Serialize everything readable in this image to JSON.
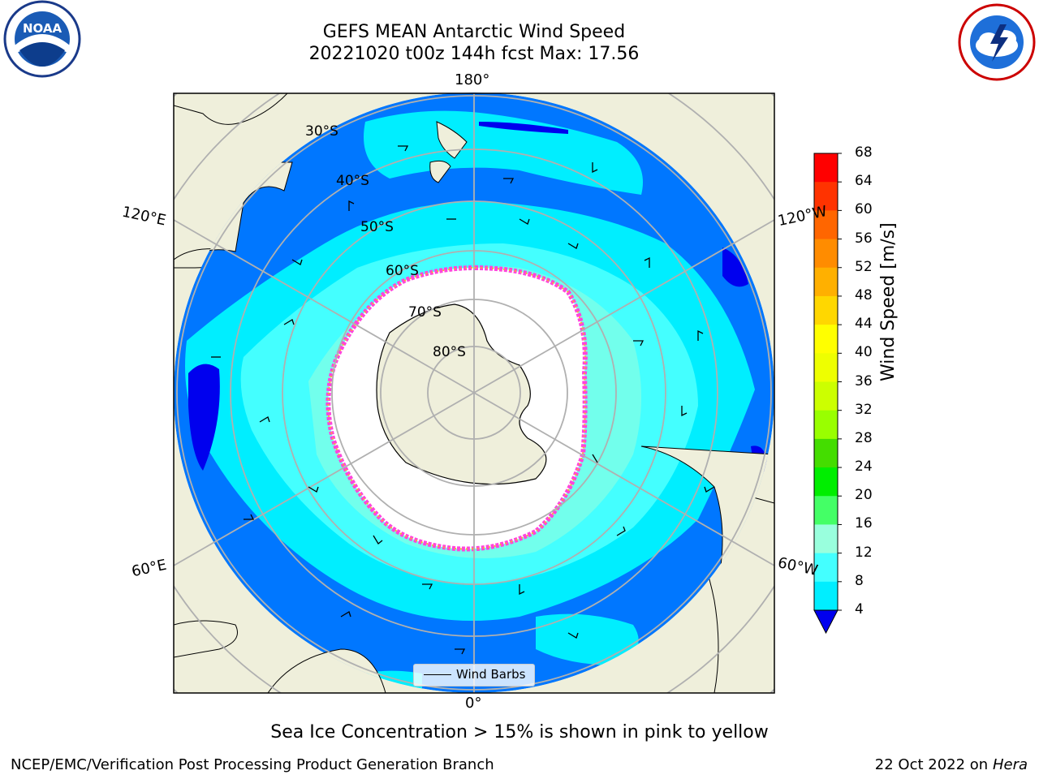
{
  "title": {
    "line1": "GEFS MEAN Antarctic Wind Speed",
    "line2": "20221020 t00z 144h fcst   Max: 17.56"
  },
  "logos": {
    "left": "noaa-logo",
    "left_text": "NOAA",
    "right": "nws-logo"
  },
  "map": {
    "projection": "south-polar-stereographic",
    "longitude_labels": {
      "top": "180°",
      "bottom": "0°",
      "left_upper": "120°E",
      "left_lower": "60°E",
      "right_upper": "120°W",
      "right_lower": "60°W"
    },
    "latitude_labels": [
      "30°S",
      "40°S",
      "50°S",
      "60°S",
      "70°S",
      "80°S"
    ],
    "legend": {
      "label": "Wind Barbs"
    },
    "land_color": "#efefdb",
    "ice_colors": [
      "#ff44dd",
      "#ffaa33"
    ]
  },
  "colorbar": {
    "label": "Wind Speed [m/s]",
    "ticks": [
      "68",
      "64",
      "60",
      "56",
      "52",
      "48",
      "44",
      "40",
      "36",
      "32",
      "28",
      "24",
      "20",
      "16",
      "12",
      "8",
      "4"
    ],
    "colors": [
      "#ff0000",
      "#ff3300",
      "#ff6600",
      "#ff8c00",
      "#ffb000",
      "#ffd700",
      "#ffff00",
      "#eeff00",
      "#ccff00",
      "#99ff00",
      "#44dd00",
      "#00ee00",
      "#44ff66",
      "#99ffdd",
      "#44ffff",
      "#00eeff",
      "#0077ff"
    ],
    "under_color": "#0000ee"
  },
  "caption": "Sea Ice Concentration > 15% is shown in pink to yellow",
  "footer": {
    "left": "NCEP/EMC/Verification Post Processing Product Generation Branch",
    "right_prefix": "22 Oct 2022 on ",
    "right_italic": "Hera"
  }
}
